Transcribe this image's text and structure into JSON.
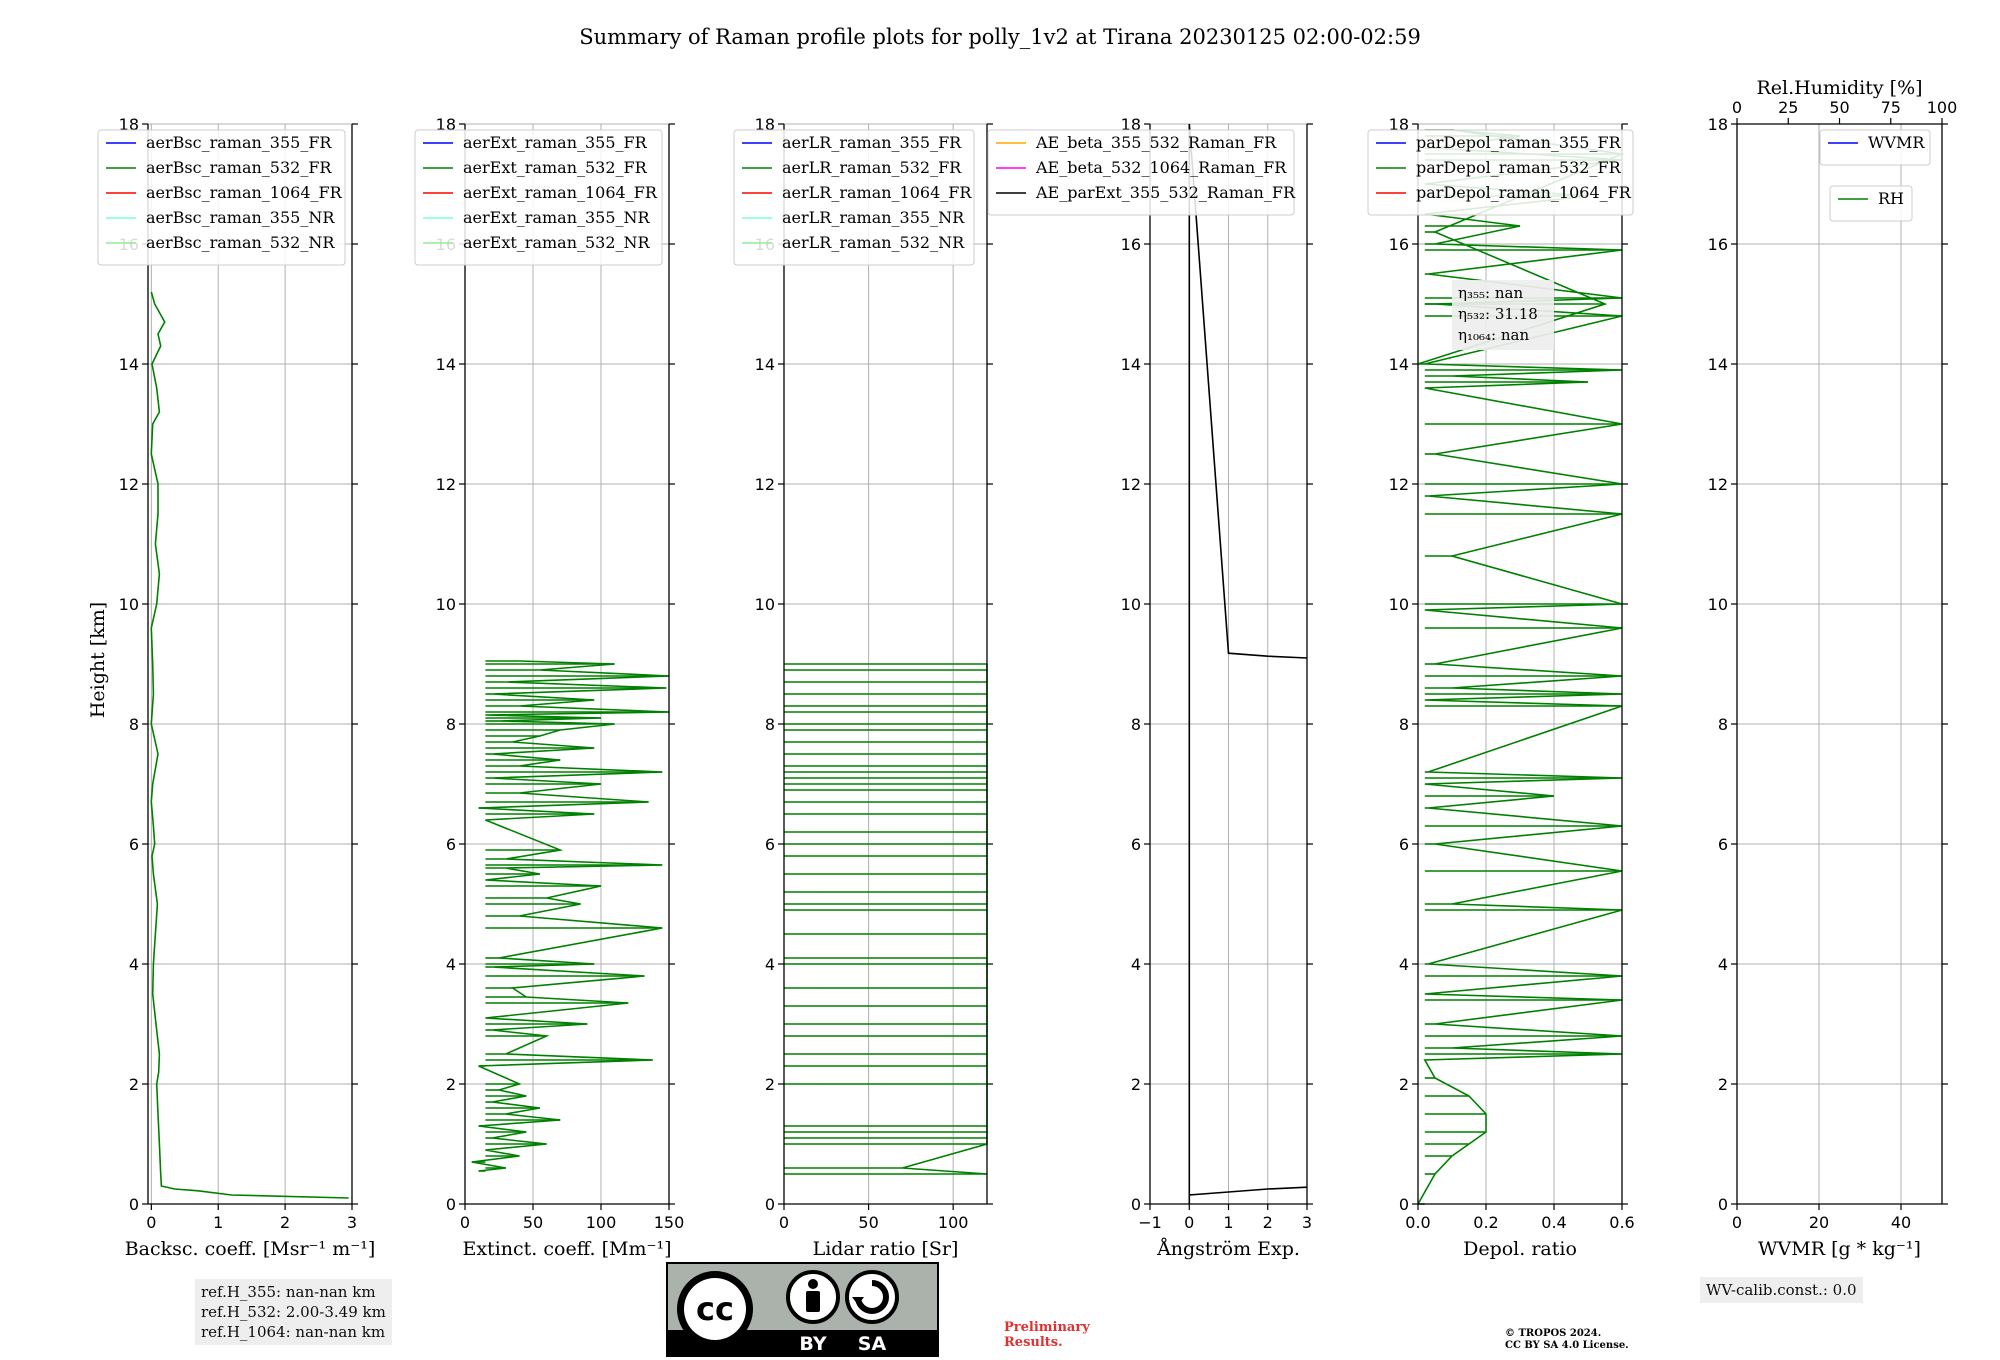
{
  "title": "Summary of Raman profile plots for polly_1v2 at Tirana 20230125 02:00-02:59",
  "y_label": "Height [km]",
  "y_ticks": [
    "0",
    "2",
    "4",
    "6",
    "8",
    "10",
    "12",
    "14",
    "16",
    "18"
  ],
  "panels": [
    {
      "xlabel": "Backsc. coeff. [Msr⁻¹ m⁻¹]",
      "xticks": [
        "0",
        "1",
        "2",
        "3"
      ],
      "legend": [
        {
          "label": "aerBsc_raman_355_FR",
          "color": "#0000ff"
        },
        {
          "label": "aerBsc_raman_532_FR",
          "color": "#008000"
        },
        {
          "label": "aerBsc_raman_1064_FR",
          "color": "#ff0000"
        },
        {
          "label": "aerBsc_raman_355_NR",
          "color": "#7fffd4"
        },
        {
          "label": "aerBsc_raman_532_NR",
          "color": "#90ee90"
        }
      ]
    },
    {
      "xlabel": "Extinct. coeff. [Mm⁻¹]",
      "xticks": [
        "0",
        "50",
        "100",
        "150"
      ],
      "legend": [
        {
          "label": "aerExt_raman_355_FR",
          "color": "#0000ff"
        },
        {
          "label": "aerExt_raman_532_FR",
          "color": "#008000"
        },
        {
          "label": "aerExt_raman_1064_FR",
          "color": "#ff0000"
        },
        {
          "label": "aerExt_raman_355_NR",
          "color": "#7fffd4"
        },
        {
          "label": "aerExt_raman_532_NR",
          "color": "#90ee90"
        }
      ]
    },
    {
      "xlabel": "Lidar ratio [Sr]",
      "xticks": [
        "0",
        "50",
        "100"
      ],
      "legend": [
        {
          "label": "aerLR_raman_355_FR",
          "color": "#0000ff"
        },
        {
          "label": "aerLR_raman_532_FR",
          "color": "#008000"
        },
        {
          "label": "aerLR_raman_1064_FR",
          "color": "#ff0000"
        },
        {
          "label": "aerLR_raman_355_NR",
          "color": "#7fffd4"
        },
        {
          "label": "aerLR_raman_532_NR",
          "color": "#90ee90"
        }
      ]
    },
    {
      "xlabel": "Ångström Exp.",
      "xticks": [
        "−1",
        "0",
        "1",
        "2",
        "3"
      ],
      "legend": [
        {
          "label": "AE_beta_355_532_Raman_FR",
          "color": "#ffa500"
        },
        {
          "label": "AE_beta_532_1064_Raman_FR",
          "color": "#ff00ff"
        },
        {
          "label": "AE_parExt_355_532_Raman_FR",
          "color": "#000000"
        }
      ]
    },
    {
      "xlabel": "Depol. ratio",
      "xticks": [
        "0.0",
        "0.2",
        "0.4",
        "0.6"
      ],
      "legend": [
        {
          "label": "parDepol_raman_355_FR",
          "color": "#0000ff"
        },
        {
          "label": "parDepol_raman_532_FR",
          "color": "#008000"
        },
        {
          "label": "parDepol_raman_1064_FR",
          "color": "#ff0000"
        }
      ]
    },
    {
      "xlabel": "WVMR [g * kg⁻¹]",
      "xticks": [
        "0",
        "20",
        "40"
      ],
      "top_label": "Rel.Humidity [%]",
      "top_ticks": [
        "0",
        "25",
        "50",
        "75",
        "100"
      ],
      "legend": [
        {
          "label": "WVMR",
          "color": "#0000ff"
        }
      ],
      "legend2": [
        {
          "label": "RH",
          "color": "#008000"
        }
      ]
    }
  ],
  "eta_box": [
    "η₃₅₅: nan",
    "η₅₃₂: 31.18",
    "η₁₀₆₄: nan"
  ],
  "ref_heights": [
    "ref.H_355: nan-nan km",
    "ref.H_532: 2.00-3.49 km",
    "ref.H_1064: nan-nan km"
  ],
  "wv_calib": "WV-calib.const.: 0.0",
  "preliminary": [
    "Preliminary",
    "Results."
  ],
  "copyright": [
    "© TROPOS 2024.",
    "CC BY SA 4.0 License."
  ],
  "cc_badge": {
    "cc": "cc",
    "by": "BY",
    "sa": "SA"
  },
  "chart_data": [
    {
      "type": "line",
      "title": "",
      "xlabel": "Backsc. coeff. [Msr⁻¹ m⁻¹]",
      "ylabel": "Height [km]",
      "xlim": [
        -0.05,
        3
      ],
      "ylim": [
        0,
        18
      ],
      "grid": true,
      "legend_placement": "top",
      "series": [
        {
          "name": "aerBsc_raman_532_FR",
          "color": "#008000",
          "x": [
            2.95,
            1.2,
            0.7,
            0.35,
            0.15,
            0.14,
            0.12,
            0.1,
            0.08,
            0.11,
            0.12,
            0.07,
            0.02,
            0.03,
            0.06,
            0.09,
            0.03,
            0.01,
            0.05,
            0.03,
            0.0,
            0.02,
            0.1,
            0.0,
            0.03,
            0.02,
            0.0,
            0.08,
            0.12,
            0.06,
            0.1,
            0.1,
            0.0,
            0.02,
            0.12,
            0.08,
            0.01,
            0.14,
            0.1,
            0.2,
            0.05,
            0.0
          ],
          "y": [
            0.1,
            0.15,
            0.22,
            0.25,
            0.3,
            0.5,
            1.0,
            1.5,
            2.0,
            2.2,
            2.5,
            3.0,
            3.5,
            4.0,
            4.5,
            5.0,
            5.5,
            5.8,
            6.0,
            6.3,
            6.7,
            7.0,
            7.5,
            8.0,
            8.5,
            9.0,
            9.6,
            10.0,
            10.5,
            11.0,
            11.5,
            12.0,
            12.5,
            13.0,
            13.2,
            13.6,
            14.0,
            14.3,
            14.5,
            14.7,
            15.0,
            15.2
          ]
        }
      ]
    },
    {
      "type": "line",
      "title": "",
      "xlabel": "Extinct. coeff. [Mm⁻¹]",
      "ylabel": "",
      "xlim": [
        0,
        150
      ],
      "ylim": [
        0,
        18
      ],
      "grid": true,
      "legend_placement": "top",
      "series": [
        {
          "name": "aerExt_raman_532_FR",
          "color": "#008000",
          "x": [
            10,
            30,
            5,
            40,
            15,
            60,
            20,
            45,
            10,
            70,
            30,
            55,
            20,
            45,
            25,
            40,
            10,
            138,
            30,
            60,
            20,
            90,
            15,
            120,
            45,
            35,
            132,
            20,
            95,
            25,
            145,
            40,
            85,
            60,
            100,
            15,
            55,
            30,
            145,
            30,
            70,
            15,
            95,
            10,
            135,
            40,
            100,
            20,
            145,
            40,
            70,
            20,
            95,
            35,
            55,
            70,
            110,
            25,
            100,
            15,
            150,
            40,
            95,
            20,
            148,
            30,
            150,
            55,
            110,
            40
          ],
          "y": [
            0.55,
            0.6,
            0.7,
            0.8,
            0.9,
            1.0,
            1.1,
            1.2,
            1.3,
            1.4,
            1.5,
            1.6,
            1.7,
            1.8,
            1.9,
            2.0,
            2.3,
            2.4,
            2.5,
            2.8,
            2.9,
            3.0,
            3.1,
            3.35,
            3.45,
            3.6,
            3.8,
            3.95,
            4.0,
            4.1,
            4.6,
            4.8,
            5.0,
            5.1,
            5.3,
            5.4,
            5.5,
            5.6,
            5.65,
            5.75,
            5.9,
            6.4,
            6.5,
            6.6,
            6.7,
            6.85,
            7.0,
            7.1,
            7.2,
            7.3,
            7.4,
            7.5,
            7.6,
            7.7,
            7.8,
            7.9,
            8.0,
            8.05,
            8.1,
            8.15,
            8.2,
            8.3,
            8.4,
            8.5,
            8.6,
            8.7,
            8.8,
            8.9,
            9.0,
            9.05
          ]
        }
      ]
    },
    {
      "type": "line",
      "title": "",
      "xlabel": "Lidar ratio [Sr]",
      "ylabel": "",
      "xlim": [
        0,
        120
      ],
      "ylim": [
        0,
        18
      ],
      "grid": true,
      "legend_placement": "top",
      "series": [
        {
          "name": "aerLR_raman_532_FR",
          "color": "#008000",
          "x": [
            120,
            70,
            120,
            120,
            120,
            120,
            120,
            120,
            120,
            120,
            120,
            120,
            120,
            120,
            120,
            120,
            120,
            120,
            120,
            120,
            120,
            120,
            120,
            120,
            120,
            120,
            120,
            120,
            120,
            120,
            120,
            120,
            120,
            120,
            120,
            120,
            120,
            120,
            120,
            120
          ],
          "y": [
            0.5,
            0.6,
            1.0,
            1.1,
            1.2,
            1.3,
            2.0,
            2.3,
            2.5,
            2.8,
            3.0,
            3.3,
            3.6,
            4.0,
            4.1,
            4.5,
            4.9,
            5.0,
            5.2,
            5.5,
            5.8,
            6.0,
            6.2,
            6.5,
            6.7,
            6.9,
            7.0,
            7.1,
            7.2,
            7.3,
            7.5,
            7.7,
            7.9,
            8.0,
            8.2,
            8.3,
            8.5,
            8.7,
            8.9,
            9.0
          ]
        }
      ]
    },
    {
      "type": "line",
      "title": "",
      "xlabel": "Ångström Exp.",
      "ylabel": "",
      "xlim": [
        -1,
        3
      ],
      "ylim": [
        0,
        18
      ],
      "grid": true,
      "legend_placement": "top",
      "series": [
        {
          "name": "AE_parExt_355_532_Raman_FR",
          "color": "#000000",
          "x": [
            3,
            2,
            1,
            0,
            0,
            0,
            0,
            1,
            2,
            3
          ],
          "y": [
            0.28,
            0.25,
            0.2,
            0.15,
            0.0,
            9.25,
            18,
            9.18,
            9.13,
            9.1
          ]
        }
      ]
    },
    {
      "type": "line",
      "title": "",
      "xlabel": "Depol. ratio",
      "ylabel": "",
      "xlim": [
        0,
        0.6
      ],
      "ylim": [
        0,
        18
      ],
      "grid": true,
      "legend_placement": "top",
      "series": [
        {
          "name": "parDepol_raman_532_FR",
          "color": "#008000",
          "x": [
            0.0,
            0.05,
            0.1,
            0.15,
            0.2,
            0.2,
            0.15,
            0.05,
            0.02,
            0.6,
            0.1,
            0.6,
            0.05,
            0.6,
            0.02,
            0.6,
            0.03,
            0.6,
            0.1,
            0.6,
            0.05,
            0.6,
            0.03,
            0.4,
            0.02,
            0.6,
            0.03,
            0.6,
            0.02,
            0.6,
            0.1,
            0.6,
            0.05,
            0.6,
            0.02,
            0.6,
            0.1,
            0.6,
            0.03,
            0.6,
            0.05,
            0.6,
            0.02,
            0.5,
            0.1,
            0.6,
            0.02,
            0.6,
            0.05,
            0.6,
            0.03,
            0.6,
            0.05,
            0.3,
            0.02,
            0.5,
            0.02,
            0.6,
            0.05,
            0.3,
            0.1,
            0.6,
            0.05,
            0.55,
            0.0
          ],
          "y": [
            0.0,
            0.5,
            0.8,
            1.0,
            1.2,
            1.5,
            1.8,
            2.1,
            2.4,
            2.5,
            2.6,
            2.8,
            3.0,
            3.4,
            3.5,
            3.8,
            4.0,
            4.9,
            5.0,
            5.55,
            6.0,
            6.3,
            6.6,
            6.8,
            7.0,
            7.1,
            7.2,
            8.3,
            8.4,
            8.5,
            8.6,
            8.8,
            9.0,
            9.6,
            9.9,
            10.0,
            10.8,
            11.5,
            11.8,
            12.0,
            12.5,
            13.0,
            13.6,
            13.7,
            13.8,
            13.9,
            14.0,
            14.8,
            15.0,
            15.1,
            15.5,
            15.9,
            16.0,
            16.3,
            16.5,
            16.8,
            17.0,
            17.4,
            17.6,
            17.8,
            17.9,
            17.5,
            16.2,
            15.0,
            14.0
          ]
        }
      ]
    },
    {
      "type": "line",
      "title": "",
      "xlabel": "WVMR [g * kg⁻¹]",
      "ylabel": "",
      "xlim": [
        0,
        50
      ],
      "ylim": [
        0,
        18
      ],
      "x2label": "Rel.Humidity [%]",
      "x2lim": [
        0,
        100
      ],
      "grid": true,
      "legend_placement": "top-right",
      "series": [
        {
          "name": "WVMR",
          "color": "#0000ff",
          "x": [],
          "y": []
        },
        {
          "name": "RH",
          "color": "#008000",
          "x": [],
          "y": []
        }
      ]
    }
  ]
}
